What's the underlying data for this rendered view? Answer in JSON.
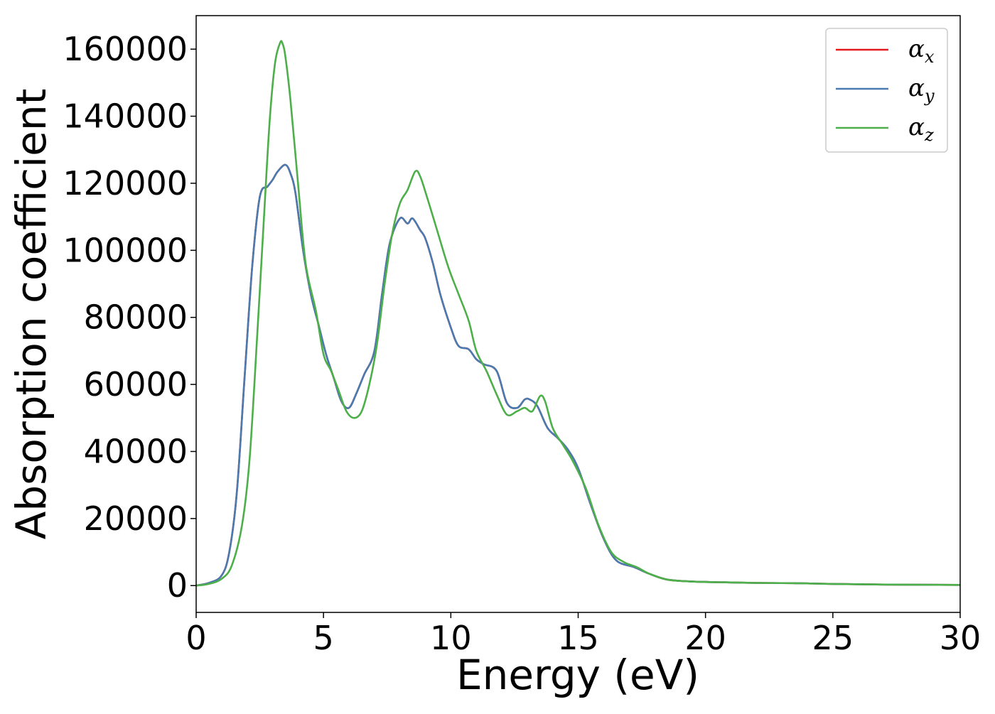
{
  "chart_data": {
    "type": "line",
    "title": "",
    "xlabel": "Energy (eV)",
    "ylabel": "Absorption coefficient",
    "xlim": [
      0,
      30
    ],
    "ylim": [
      -8000,
      170000
    ],
    "xticks": [
      0,
      5,
      10,
      15,
      20,
      25,
      30
    ],
    "yticks": [
      0,
      20000,
      40000,
      60000,
      80000,
      100000,
      120000,
      140000,
      160000
    ],
    "grid": false,
    "legend_position": "top-right",
    "series": [
      {
        "name": "α",
        "subscript": "x",
        "color": "#e41a1c",
        "x": [
          0,
          0.5,
          1.0,
          1.3,
          1.6,
          1.9,
          2.2,
          2.5,
          2.8,
          3.0,
          3.2,
          3.5,
          3.7,
          3.9,
          4.2,
          4.5,
          4.8,
          5.1,
          5.4,
          5.7,
          6.0,
          6.3,
          6.6,
          7.0,
          7.3,
          7.6,
          8.0,
          8.3,
          8.5,
          8.8,
          9.0,
          9.3,
          9.6,
          10.0,
          10.3,
          10.7,
          11.0,
          11.3,
          11.8,
          12.2,
          12.6,
          12.9,
          13.1,
          13.4,
          13.8,
          14.2,
          14.6,
          15.0,
          15.5,
          16.0,
          16.5,
          17.2,
          17.8,
          18.5,
          19.5,
          20.5,
          22.0,
          23.5,
          25.0,
          27.0,
          30.0
        ],
        "y": [
          0,
          800,
          3000,
          10000,
          28000,
          62000,
          95000,
          116000,
          119000,
          121000,
          123500,
          125500,
          123000,
          117000,
          100000,
          87000,
          78000,
          69000,
          62000,
          55000,
          53000,
          57500,
          63000,
          70000,
          87000,
          102000,
          109500,
          108000,
          109500,
          106000,
          103500,
          96000,
          86500,
          77000,
          71500,
          70500,
          67500,
          66000,
          64000,
          54500,
          53000,
          55500,
          55500,
          53500,
          47000,
          44000,
          40500,
          35000,
          24000,
          14000,
          7500,
          5500,
          3500,
          1800,
          1200,
          1000,
          800,
          700,
          500,
          300,
          200
        ]
      },
      {
        "name": "α",
        "subscript": "y",
        "color": "#4a7bb0",
        "x": [
          0,
          0.5,
          1.0,
          1.3,
          1.6,
          1.9,
          2.2,
          2.5,
          2.8,
          3.0,
          3.2,
          3.5,
          3.7,
          3.9,
          4.2,
          4.5,
          4.8,
          5.1,
          5.4,
          5.7,
          6.0,
          6.3,
          6.6,
          7.0,
          7.3,
          7.6,
          8.0,
          8.3,
          8.5,
          8.8,
          9.0,
          9.3,
          9.6,
          10.0,
          10.3,
          10.7,
          11.0,
          11.3,
          11.8,
          12.2,
          12.6,
          12.9,
          13.1,
          13.4,
          13.8,
          14.2,
          14.6,
          15.0,
          15.5,
          16.0,
          16.5,
          17.2,
          17.8,
          18.5,
          19.5,
          20.5,
          22.0,
          23.5,
          25.0,
          27.0,
          30.0
        ],
        "y": [
          0,
          800,
          3000,
          10000,
          28000,
          62000,
          95000,
          116000,
          119000,
          121000,
          123500,
          125500,
          123000,
          117000,
          100000,
          87000,
          78000,
          69000,
          62000,
          55000,
          53000,
          57500,
          63000,
          70000,
          87000,
          102000,
          109500,
          108000,
          109500,
          106000,
          103500,
          96000,
          86500,
          77000,
          71500,
          70500,
          67500,
          66000,
          64000,
          54500,
          53000,
          55500,
          55500,
          53500,
          47000,
          44000,
          40500,
          35000,
          24000,
          14000,
          7500,
          5500,
          3500,
          1800,
          1200,
          1000,
          800,
          700,
          500,
          300,
          200
        ]
      },
      {
        "name": "α",
        "subscript": "z",
        "color": "#4daf4a",
        "x": [
          0,
          0.5,
          1.0,
          1.4,
          1.8,
          2.1,
          2.4,
          2.7,
          2.9,
          3.1,
          3.3,
          3.4,
          3.5,
          3.7,
          4.0,
          4.3,
          4.7,
          5.0,
          5.3,
          5.6,
          5.9,
          6.2,
          6.5,
          6.8,
          7.1,
          7.4,
          7.7,
          8.0,
          8.3,
          8.6,
          8.8,
          9.1,
          9.5,
          9.9,
          10.3,
          10.7,
          11.0,
          11.4,
          11.8,
          12.2,
          12.6,
          12.9,
          13.2,
          13.5,
          13.7,
          14.0,
          14.4,
          14.8,
          15.3,
          15.8,
          16.3,
          16.8,
          17.3,
          17.8,
          18.5,
          19.5,
          20.5,
          22.0,
          23.5,
          25.0,
          27.0,
          30.0
        ],
        "y": [
          0,
          500,
          2000,
          6000,
          18000,
          38000,
          75000,
          115000,
          140000,
          156000,
          162000,
          161500,
          158000,
          145000,
          120000,
          96000,
          82000,
          69000,
          64000,
          58000,
          52000,
          50000,
          52000,
          60000,
          72000,
          90000,
          105000,
          114000,
          118000,
          123500,
          122000,
          115000,
          105000,
          95000,
          87000,
          79000,
          70000,
          64000,
          57000,
          51000,
          52000,
          53000,
          52000,
          56500,
          55000,
          47000,
          42000,
          37000,
          29000,
          18000,
          10000,
          7000,
          5500,
          3500,
          1800,
          1200,
          1000,
          800,
          700,
          500,
          300,
          200
        ]
      }
    ]
  }
}
